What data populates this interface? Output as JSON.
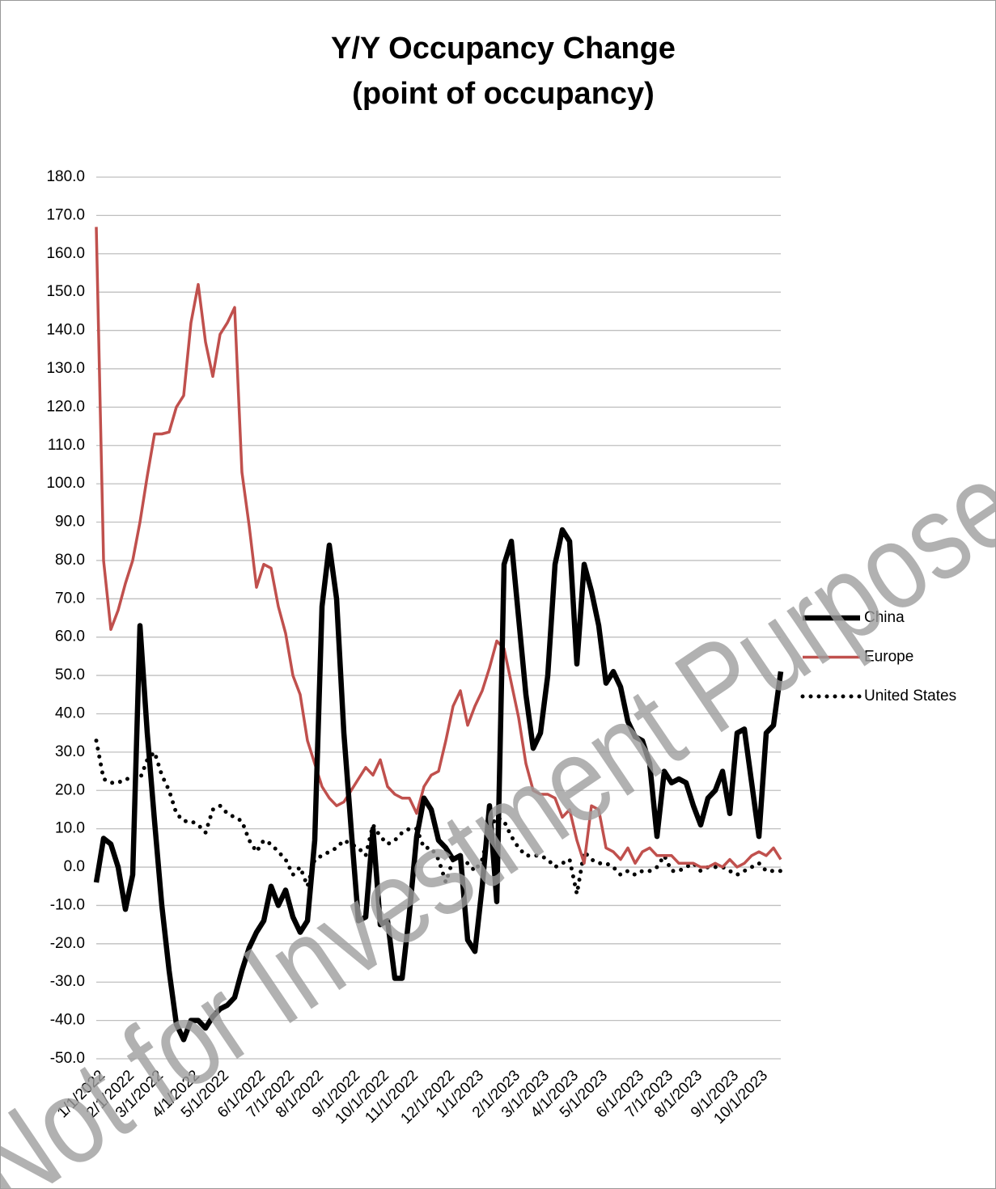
{
  "chart_data": {
    "type": "line",
    "title": "Y/Y Occupancy Change",
    "subtitle": "(point of occupancy)",
    "watermark": "Not for Investment Purposes",
    "categories": [
      "1/1/2022",
      null,
      null,
      null,
      "2/1/2022",
      null,
      null,
      null,
      "3/1/2022",
      null,
      null,
      null,
      null,
      "4/1/2022",
      null,
      null,
      null,
      "5/1/2022",
      null,
      null,
      null,
      null,
      "6/1/2022",
      null,
      null,
      null,
      "7/1/2022",
      null,
      null,
      null,
      "8/1/2022",
      null,
      null,
      null,
      null,
      "9/1/2022",
      null,
      null,
      null,
      "10/1/2022",
      null,
      null,
      null,
      "11/1/2022",
      null,
      null,
      null,
      null,
      "12/1/2022",
      null,
      null,
      null,
      "1/1/2023",
      null,
      null,
      null,
      null,
      "2/1/2023",
      null,
      null,
      null,
      "3/1/2023",
      null,
      null,
      null,
      "4/1/2023",
      null,
      null,
      null,
      "5/1/2023",
      null,
      null,
      null,
      null,
      "6/1/2023",
      null,
      null,
      null,
      "7/1/2023",
      null,
      null,
      null,
      "8/1/2023",
      null,
      null,
      null,
      null,
      "9/1/2023",
      null,
      null,
      null,
      "10/1/2023",
      null,
      null,
      null
    ],
    "series": [
      {
        "name": "China",
        "color": "#000000",
        "style": "thick",
        "values": [
          -4,
          7.5,
          6,
          0,
          -11,
          -2,
          63,
          35,
          12,
          -10,
          -27,
          -41,
          -45,
          -40,
          -40,
          -42,
          -39,
          -37,
          -36,
          -34,
          -27,
          -21,
          -17,
          -14,
          -5,
          -10,
          -6,
          -13,
          -17,
          -14,
          7,
          68,
          84,
          70,
          35,
          10,
          -14,
          -13,
          10,
          -15,
          -14,
          -29,
          -29,
          -12,
          8,
          18,
          15,
          7,
          5,
          2,
          3,
          -19,
          -22,
          -5,
          16,
          -9,
          79,
          85,
          65,
          45,
          31,
          35,
          50,
          79,
          88,
          85,
          53,
          79,
          72,
          63,
          48,
          51,
          47,
          38,
          34,
          33,
          27,
          8,
          25,
          22,
          23,
          22,
          16,
          11,
          18,
          20,
          25,
          14,
          35,
          36,
          22,
          8,
          35,
          37,
          51
        ]
      },
      {
        "name": "Europe",
        "color": "#c0504d",
        "style": "solid",
        "values": [
          167,
          80,
          62,
          67,
          74,
          80,
          90,
          102,
          113,
          113,
          113.5,
          120,
          123,
          142,
          152,
          137,
          128,
          139,
          142,
          146,
          103,
          89,
          73,
          79,
          78,
          68,
          61,
          50,
          45,
          33,
          27,
          21,
          18,
          16,
          17,
          20,
          23,
          26,
          24,
          28,
          21,
          19,
          18,
          18,
          14,
          21,
          24,
          25,
          33,
          42,
          46,
          37,
          42,
          46,
          52,
          59,
          57,
          48,
          39,
          27,
          20,
          19,
          19,
          18,
          13,
          15,
          7,
          1,
          16,
          15,
          5,
          4,
          2,
          5,
          1,
          4,
          5,
          3,
          3,
          3,
          1,
          1,
          1,
          0,
          0,
          1,
          0,
          2,
          0,
          1,
          3,
          4,
          3,
          5,
          2
        ]
      },
      {
        "name": "United States",
        "color": "#000000",
        "style": "dotted",
        "values": [
          33,
          23,
          22,
          22,
          23,
          23,
          23,
          28,
          30,
          24,
          20,
          14,
          12,
          12,
          11,
          9,
          15,
          16,
          14,
          13,
          12,
          7,
          4,
          7,
          6,
          4,
          2,
          -2,
          0,
          -5,
          2,
          3,
          4,
          5,
          7,
          6,
          5,
          3,
          11,
          8,
          6,
          7,
          9,
          10,
          10,
          5,
          5,
          2,
          -4,
          2,
          2,
          1,
          -1,
          2,
          10,
          13,
          12,
          8,
          5,
          3,
          3,
          3,
          2,
          0,
          1,
          2,
          -7,
          4,
          2,
          1,
          1,
          0,
          -2,
          -1,
          -2,
          -1,
          -1,
          0,
          3,
          -1,
          -1,
          0,
          1,
          -1,
          0,
          0,
          0,
          -1,
          -2,
          -1,
          0,
          1,
          -1,
          -1,
          -1
        ]
      }
    ],
    "ylim": [
      -50,
      180
    ],
    "yticks": [
      {
        "value": -50,
        "label": "-50.0"
      },
      {
        "value": -40,
        "label": "-40.0"
      },
      {
        "value": -30,
        "label": "-30.0"
      },
      {
        "value": -20,
        "label": "-20.0"
      },
      {
        "value": -10,
        "label": "-10.0"
      },
      {
        "value": 0,
        "label": "0.0"
      },
      {
        "value": 10,
        "label": "10.0"
      },
      {
        "value": 20,
        "label": "20.0"
      },
      {
        "value": 30,
        "label": "30.0"
      },
      {
        "value": 40,
        "label": "40.0"
      },
      {
        "value": 50,
        "label": "50.0"
      },
      {
        "value": 60,
        "label": "60.0"
      },
      {
        "value": 70,
        "label": "70.0"
      },
      {
        "value": 80,
        "label": "80.0"
      },
      {
        "value": 90,
        "label": "90.0"
      },
      {
        "value": 100,
        "label": "100.0"
      },
      {
        "value": 110,
        "label": "110.0"
      },
      {
        "value": 120,
        "label": "120.0"
      },
      {
        "value": 130,
        "label": "130.0"
      },
      {
        "value": 140,
        "label": "140.0"
      },
      {
        "value": 150,
        "label": "150.0"
      },
      {
        "value": 160,
        "label": "160.0"
      },
      {
        "value": 170,
        "label": "170.0"
      },
      {
        "value": 180,
        "label": "180.0"
      }
    ],
    "grid": true,
    "legend": "right"
  }
}
